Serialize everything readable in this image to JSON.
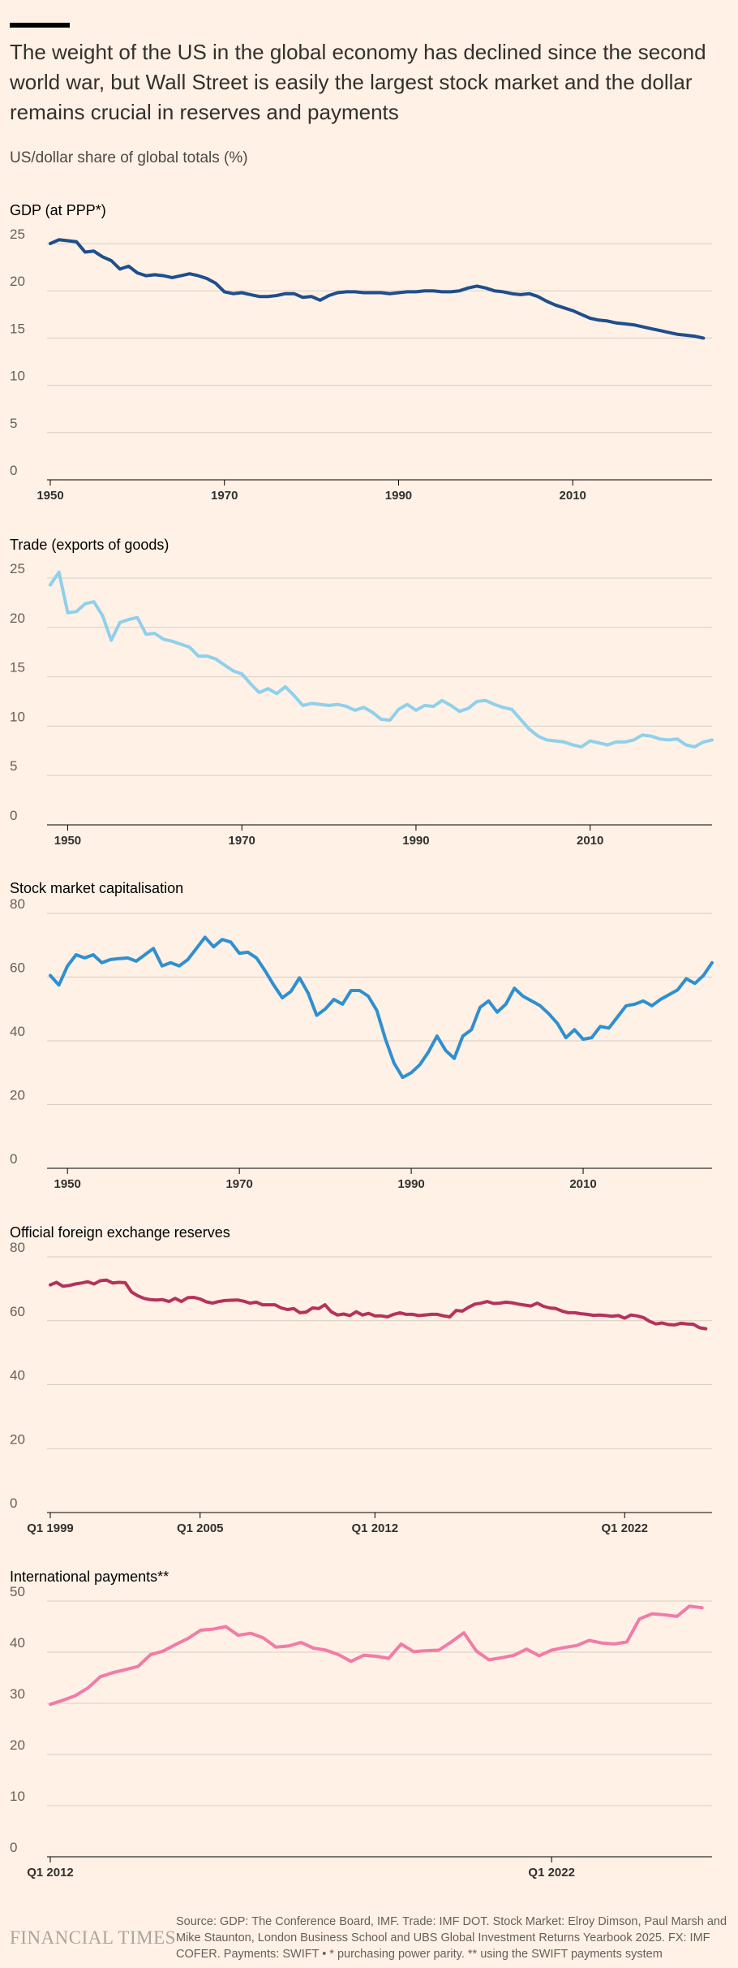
{
  "header": {
    "headline": "The weight of the US in the global economy has declined since the second world war, but Wall Street is easily the largest stock market and the dollar remains crucial in reserves and payments",
    "subtitle": "US/dollar share of global totals (%)"
  },
  "footer": {
    "logo": "FINANCIAL TIMES",
    "source": "Source: GDP: The Conference Board, IMF. Trade: IMF DOT. Stock Market: Elroy Dimson, Paul Marsh and Mike Staunton, London Business School and UBS Global Investment Returns Yearbook 2025. FX: IMF COFER. Payments: SWIFT • * purchasing power parity. ** using the SWIFT payments system"
  },
  "colors": {
    "background": "#fff1e5",
    "gridline": "#d9cdc2",
    "baseline": "#000000",
    "gdp": "#1f4e8c",
    "trade": "#8fd0ec",
    "stock": "#2f8fd0",
    "reserves": "#b5325c",
    "payments": "#f27ba8"
  },
  "chart_data": [
    {
      "id": "gdp",
      "type": "line",
      "title": "GDP (at PPP*)",
      "series_color": "#1f4e8c",
      "ylim": [
        0,
        25
      ],
      "yticks": [
        0,
        5,
        10,
        15,
        20,
        25
      ],
      "xlim": [
        1950,
        2026
      ],
      "xticks": [
        {
          "v": 1950,
          "label": "1950"
        },
        {
          "v": 1970,
          "label": "1970"
        },
        {
          "v": 1990,
          "label": "1990"
        },
        {
          "v": 2010,
          "label": "2010"
        }
      ],
      "grid": true,
      "x": [
        1950,
        1951,
        1952,
        1953,
        1954,
        1955,
        1956,
        1957,
        1958,
        1959,
        1960,
        1961,
        1962,
        1963,
        1964,
        1965,
        1966,
        1967,
        1968,
        1969,
        1970,
        1971,
        1972,
        1973,
        1974,
        1975,
        1976,
        1977,
        1978,
        1979,
        1980,
        1981,
        1982,
        1983,
        1984,
        1985,
        1986,
        1987,
        1988,
        1989,
        1990,
        1991,
        1992,
        1993,
        1994,
        1995,
        1996,
        1997,
        1998,
        1999,
        2000,
        2001,
        2002,
        2003,
        2004,
        2005,
        2006,
        2007,
        2008,
        2009,
        2010,
        2011,
        2012,
        2013,
        2014,
        2015,
        2016,
        2017,
        2018,
        2019,
        2020,
        2021,
        2022,
        2023,
        2024,
        2025
      ],
      "values": [
        25.0,
        25.4,
        25.3,
        25.2,
        24.1,
        24.2,
        23.6,
        23.2,
        22.3,
        22.6,
        21.9,
        21.6,
        21.7,
        21.6,
        21.4,
        21.6,
        21.8,
        21.6,
        21.3,
        20.8,
        19.9,
        19.7,
        19.8,
        19.6,
        19.4,
        19.4,
        19.5,
        19.7,
        19.7,
        19.3,
        19.4,
        19.0,
        19.5,
        19.8,
        19.9,
        19.9,
        19.8,
        19.8,
        19.8,
        19.7,
        19.8,
        19.9,
        19.9,
        20.0,
        20.0,
        19.9,
        19.9,
        20.0,
        20.3,
        20.5,
        20.3,
        20.0,
        19.9,
        19.7,
        19.6,
        19.7,
        19.4,
        18.9,
        18.5,
        18.2,
        17.9,
        17.5,
        17.1,
        16.9,
        16.8,
        16.6,
        16.5,
        16.4,
        16.2,
        16.0,
        15.8,
        15.6,
        15.4,
        15.3,
        15.2,
        15.0
      ]
    },
    {
      "id": "trade",
      "type": "line",
      "title": "Trade (exports of goods)",
      "series_color": "#8fd0ec",
      "ylim": [
        0,
        25
      ],
      "yticks": [
        0,
        5,
        10,
        15,
        20,
        25
      ],
      "xlim": [
        1948,
        2024
      ],
      "xticks": [
        {
          "v": 1950,
          "label": "1950"
        },
        {
          "v": 1970,
          "label": "1970"
        },
        {
          "v": 1990,
          "label": "1990"
        },
        {
          "v": 2010,
          "label": "2010"
        }
      ],
      "grid": true,
      "x": [
        1948,
        1949,
        1950,
        1951,
        1952,
        1953,
        1954,
        1955,
        1956,
        1957,
        1958,
        1959,
        1960,
        1961,
        1962,
        1963,
        1964,
        1965,
        1966,
        1967,
        1968,
        1969,
        1970,
        1971,
        1972,
        1973,
        1974,
        1975,
        1976,
        1977,
        1978,
        1979,
        1980,
        1981,
        1982,
        1983,
        1984,
        1985,
        1986,
        1987,
        1988,
        1989,
        1990,
        1991,
        1992,
        1993,
        1994,
        1995,
        1996,
        1997,
        1998,
        1999,
        2000,
        2001,
        2002,
        2003,
        2004,
        2005,
        2006,
        2007,
        2008,
        2009,
        2010,
        2011,
        2012,
        2013,
        2014,
        2015,
        2016,
        2017,
        2018,
        2019,
        2020,
        2021,
        2022,
        2023,
        2024
      ],
      "values": [
        24.3,
        25.6,
        21.5,
        21.6,
        22.4,
        22.6,
        21.2,
        18.7,
        20.5,
        20.8,
        21.0,
        19.3,
        19.4,
        18.8,
        18.6,
        18.3,
        18.0,
        17.1,
        17.1,
        16.8,
        16.2,
        15.6,
        15.3,
        14.3,
        13.4,
        13.8,
        13.3,
        14.0,
        13.1,
        12.1,
        12.3,
        12.2,
        12.1,
        12.2,
        12.0,
        11.6,
        11.9,
        11.4,
        10.7,
        10.6,
        11.7,
        12.2,
        11.6,
        12.1,
        12.0,
        12.6,
        12.1,
        11.5,
        11.8,
        12.5,
        12.6,
        12.2,
        11.9,
        11.7,
        10.7,
        9.7,
        9.0,
        8.6,
        8.5,
        8.4,
        8.1,
        7.9,
        8.5,
        8.3,
        8.1,
        8.4,
        8.4,
        8.6,
        9.1,
        9.0,
        8.7,
        8.6,
        8.7,
        8.1,
        7.9,
        8.4,
        8.6
      ]
    },
    {
      "id": "stock",
      "type": "line",
      "title": "Stock market capitalisation",
      "series_color": "#2f8fd0",
      "ylim": [
        0,
        80
      ],
      "yticks": [
        0,
        20,
        40,
        60,
        80
      ],
      "xlim": [
        1948,
        2025
      ],
      "xticks": [
        {
          "v": 1950,
          "label": "1950"
        },
        {
          "v": 1970,
          "label": "1970"
        },
        {
          "v": 1990,
          "label": "1990"
        },
        {
          "v": 2010,
          "label": "2010"
        }
      ],
      "grid": true,
      "x": [
        1948,
        1949,
        1950,
        1951,
        1952,
        1953,
        1954,
        1955,
        1956,
        1957,
        1958,
        1959,
        1960,
        1961,
        1962,
        1963,
        1964,
        1965,
        1966,
        1967,
        1968,
        1969,
        1970,
        1971,
        1972,
        1973,
        1974,
        1975,
        1976,
        1977,
        1978,
        1979,
        1980,
        1981,
        1982,
        1983,
        1984,
        1985,
        1986,
        1987,
        1988,
        1989,
        1990,
        1991,
        1992,
        1993,
        1994,
        1995,
        1996,
        1997,
        1998,
        1999,
        2000,
        2001,
        2002,
        2003,
        2004,
        2005,
        2006,
        2007,
        2008,
        2009,
        2010,
        2011,
        2012,
        2013,
        2014,
        2015,
        2016,
        2017,
        2018,
        2019,
        2020,
        2021,
        2022,
        2023,
        2024,
        2025
      ],
      "values": [
        60.5,
        57.5,
        63.5,
        67.0,
        66.0,
        67.0,
        64.5,
        65.5,
        65.8,
        66.0,
        65.0,
        67.0,
        69.0,
        63.5,
        64.5,
        63.5,
        65.5,
        69.0,
        72.5,
        69.5,
        71.8,
        71.0,
        67.5,
        67.8,
        66.0,
        62.0,
        57.5,
        53.5,
        55.5,
        59.8,
        55.0,
        48.0,
        50.0,
        53.0,
        51.5,
        55.8,
        55.8,
        54.0,
        49.5,
        40.5,
        33.0,
        28.5,
        30.0,
        32.5,
        36.5,
        41.5,
        37.0,
        34.5,
        41.5,
        43.5,
        50.5,
        52.5,
        49.0,
        51.5,
        56.5,
        54.0,
        52.5,
        51.0,
        48.5,
        45.5,
        41.0,
        43.5,
        40.5,
        41.0,
        44.5,
        44.0,
        47.5,
        51.0,
        51.5,
        52.5,
        51.0,
        53.0,
        54.5,
        56.0,
        59.5,
        58.0,
        60.5,
        64.5
      ]
    },
    {
      "id": "reserves",
      "type": "line",
      "title": "Official foreign exchange reserves",
      "series_color": "#b5325c",
      "ylim": [
        0,
        80
      ],
      "yticks": [
        0,
        20,
        40,
        60,
        80
      ],
      "xlim": [
        1999,
        2025.5
      ],
      "xticks": [
        {
          "v": 1999,
          "label": "Q1 1999"
        },
        {
          "v": 2005,
          "label": "Q1 2005"
        },
        {
          "v": 2012,
          "label": "Q1 2012"
        },
        {
          "v": 2022,
          "label": "Q1 2022"
        }
      ],
      "grid": true,
      "x": [
        1999.0,
        1999.25,
        1999.5,
        1999.75,
        2000.0,
        2000.25,
        2000.5,
        2000.75,
        2001.0,
        2001.25,
        2001.5,
        2001.75,
        2002.0,
        2002.25,
        2002.5,
        2002.75,
        2003.0,
        2003.25,
        2003.5,
        2003.75,
        2004.0,
        2004.25,
        2004.5,
        2004.75,
        2005.0,
        2005.25,
        2005.5,
        2005.75,
        2006.0,
        2006.25,
        2006.5,
        2006.75,
        2007.0,
        2007.25,
        2007.5,
        2007.75,
        2008.0,
        2008.25,
        2008.5,
        2008.75,
        2009.0,
        2009.25,
        2009.5,
        2009.75,
        2010.0,
        2010.25,
        2010.5,
        2010.75,
        2011.0,
        2011.25,
        2011.5,
        2011.75,
        2012.0,
        2012.25,
        2012.5,
        2012.75,
        2013.0,
        2013.25,
        2013.5,
        2013.75,
        2014.0,
        2014.25,
        2014.5,
        2014.75,
        2015.0,
        2015.25,
        2015.5,
        2015.75,
        2016.0,
        2016.25,
        2016.5,
        2016.75,
        2017.0,
        2017.25,
        2017.5,
        2017.75,
        2018.0,
        2018.25,
        2018.5,
        2018.75,
        2019.0,
        2019.25,
        2019.5,
        2019.75,
        2020.0,
        2020.25,
        2020.5,
        2020.75,
        2021.0,
        2021.25,
        2021.5,
        2021.75,
        2022.0,
        2022.25,
        2022.5,
        2022.75,
        2023.0,
        2023.25,
        2023.5,
        2023.75,
        2024.0,
        2024.25,
        2024.5,
        2024.75,
        2025.0,
        2025.25
      ],
      "values": [
        71.2,
        72.0,
        70.8,
        71.0,
        71.5,
        71.8,
        72.2,
        71.5,
        72.5,
        72.7,
        71.8,
        72.0,
        71.9,
        69.0,
        67.8,
        67.0,
        66.6,
        66.5,
        66.6,
        66.0,
        67.0,
        66.0,
        67.2,
        67.3,
        66.8,
        65.9,
        65.5,
        66.0,
        66.3,
        66.4,
        66.5,
        66.1,
        65.5,
        65.8,
        65.0,
        65.0,
        65.0,
        64.0,
        63.5,
        63.8,
        62.5,
        62.7,
        64.0,
        63.8,
        65.0,
        62.8,
        61.8,
        62.1,
        61.6,
        62.8,
        61.8,
        62.3,
        61.5,
        61.5,
        61.2,
        62.0,
        62.5,
        62.0,
        62.0,
        61.6,
        61.8,
        62.0,
        62.0,
        61.5,
        61.2,
        63.2,
        63.0,
        64.2,
        65.2,
        65.5,
        66.0,
        65.4,
        65.5,
        65.8,
        65.6,
        65.2,
        64.9,
        64.6,
        65.5,
        64.5,
        64.0,
        63.8,
        63.0,
        62.5,
        62.5,
        62.2,
        62.0,
        61.7,
        61.8,
        61.6,
        61.4,
        61.6,
        60.8,
        61.8,
        61.5,
        61.0,
        59.8,
        59.0,
        59.3,
        58.8,
        58.7,
        59.2,
        59.0,
        58.9,
        57.8,
        57.5
      ]
    },
    {
      "id": "payments",
      "type": "line",
      "title": "International payments**",
      "series_color": "#f27ba8",
      "ylim": [
        0,
        50
      ],
      "yticks": [
        0,
        10,
        20,
        30,
        40,
        50
      ],
      "xlim": [
        2012,
        2025.2
      ],
      "xticks": [
        {
          "v": 2012,
          "label": "Q1 2012"
        },
        {
          "v": 2022,
          "label": "Q1 2022"
        }
      ],
      "grid": true,
      "x": [
        2012.0,
        2012.25,
        2012.5,
        2012.75,
        2013.0,
        2013.25,
        2013.5,
        2013.75,
        2014.0,
        2014.25,
        2014.5,
        2014.75,
        2015.0,
        2015.25,
        2015.5,
        2015.75,
        2016.0,
        2016.25,
        2016.5,
        2016.75,
        2017.0,
        2017.25,
        2017.5,
        2017.75,
        2018.0,
        2018.25,
        2018.5,
        2018.75,
        2019.0,
        2019.25,
        2019.5,
        2019.75,
        2020.0,
        2020.25,
        2020.5,
        2020.75,
        2021.0,
        2021.25,
        2021.5,
        2021.75,
        2022.0,
        2022.25,
        2022.5,
        2022.75,
        2023.0,
        2023.25,
        2023.5,
        2023.75,
        2024.0,
        2024.25,
        2024.5,
        2024.75,
        2025.0
      ],
      "values": [
        29.8,
        30.6,
        31.5,
        33.0,
        35.2,
        36.0,
        36.6,
        37.2,
        39.5,
        40.2,
        41.5,
        42.7,
        44.3,
        44.5,
        45.0,
        43.3,
        43.7,
        42.8,
        41.0,
        41.2,
        41.9,
        40.8,
        40.4,
        39.5,
        38.2,
        39.4,
        39.2,
        38.8,
        41.6,
        40.1,
        40.3,
        40.4,
        42.0,
        43.8,
        40.2,
        38.5,
        38.9,
        39.4,
        40.6,
        39.3,
        40.4,
        40.9,
        41.3,
        42.3,
        41.8,
        41.6,
        42.0,
        46.5,
        47.5,
        47.3,
        47.0,
        49.0,
        48.7
      ]
    }
  ]
}
